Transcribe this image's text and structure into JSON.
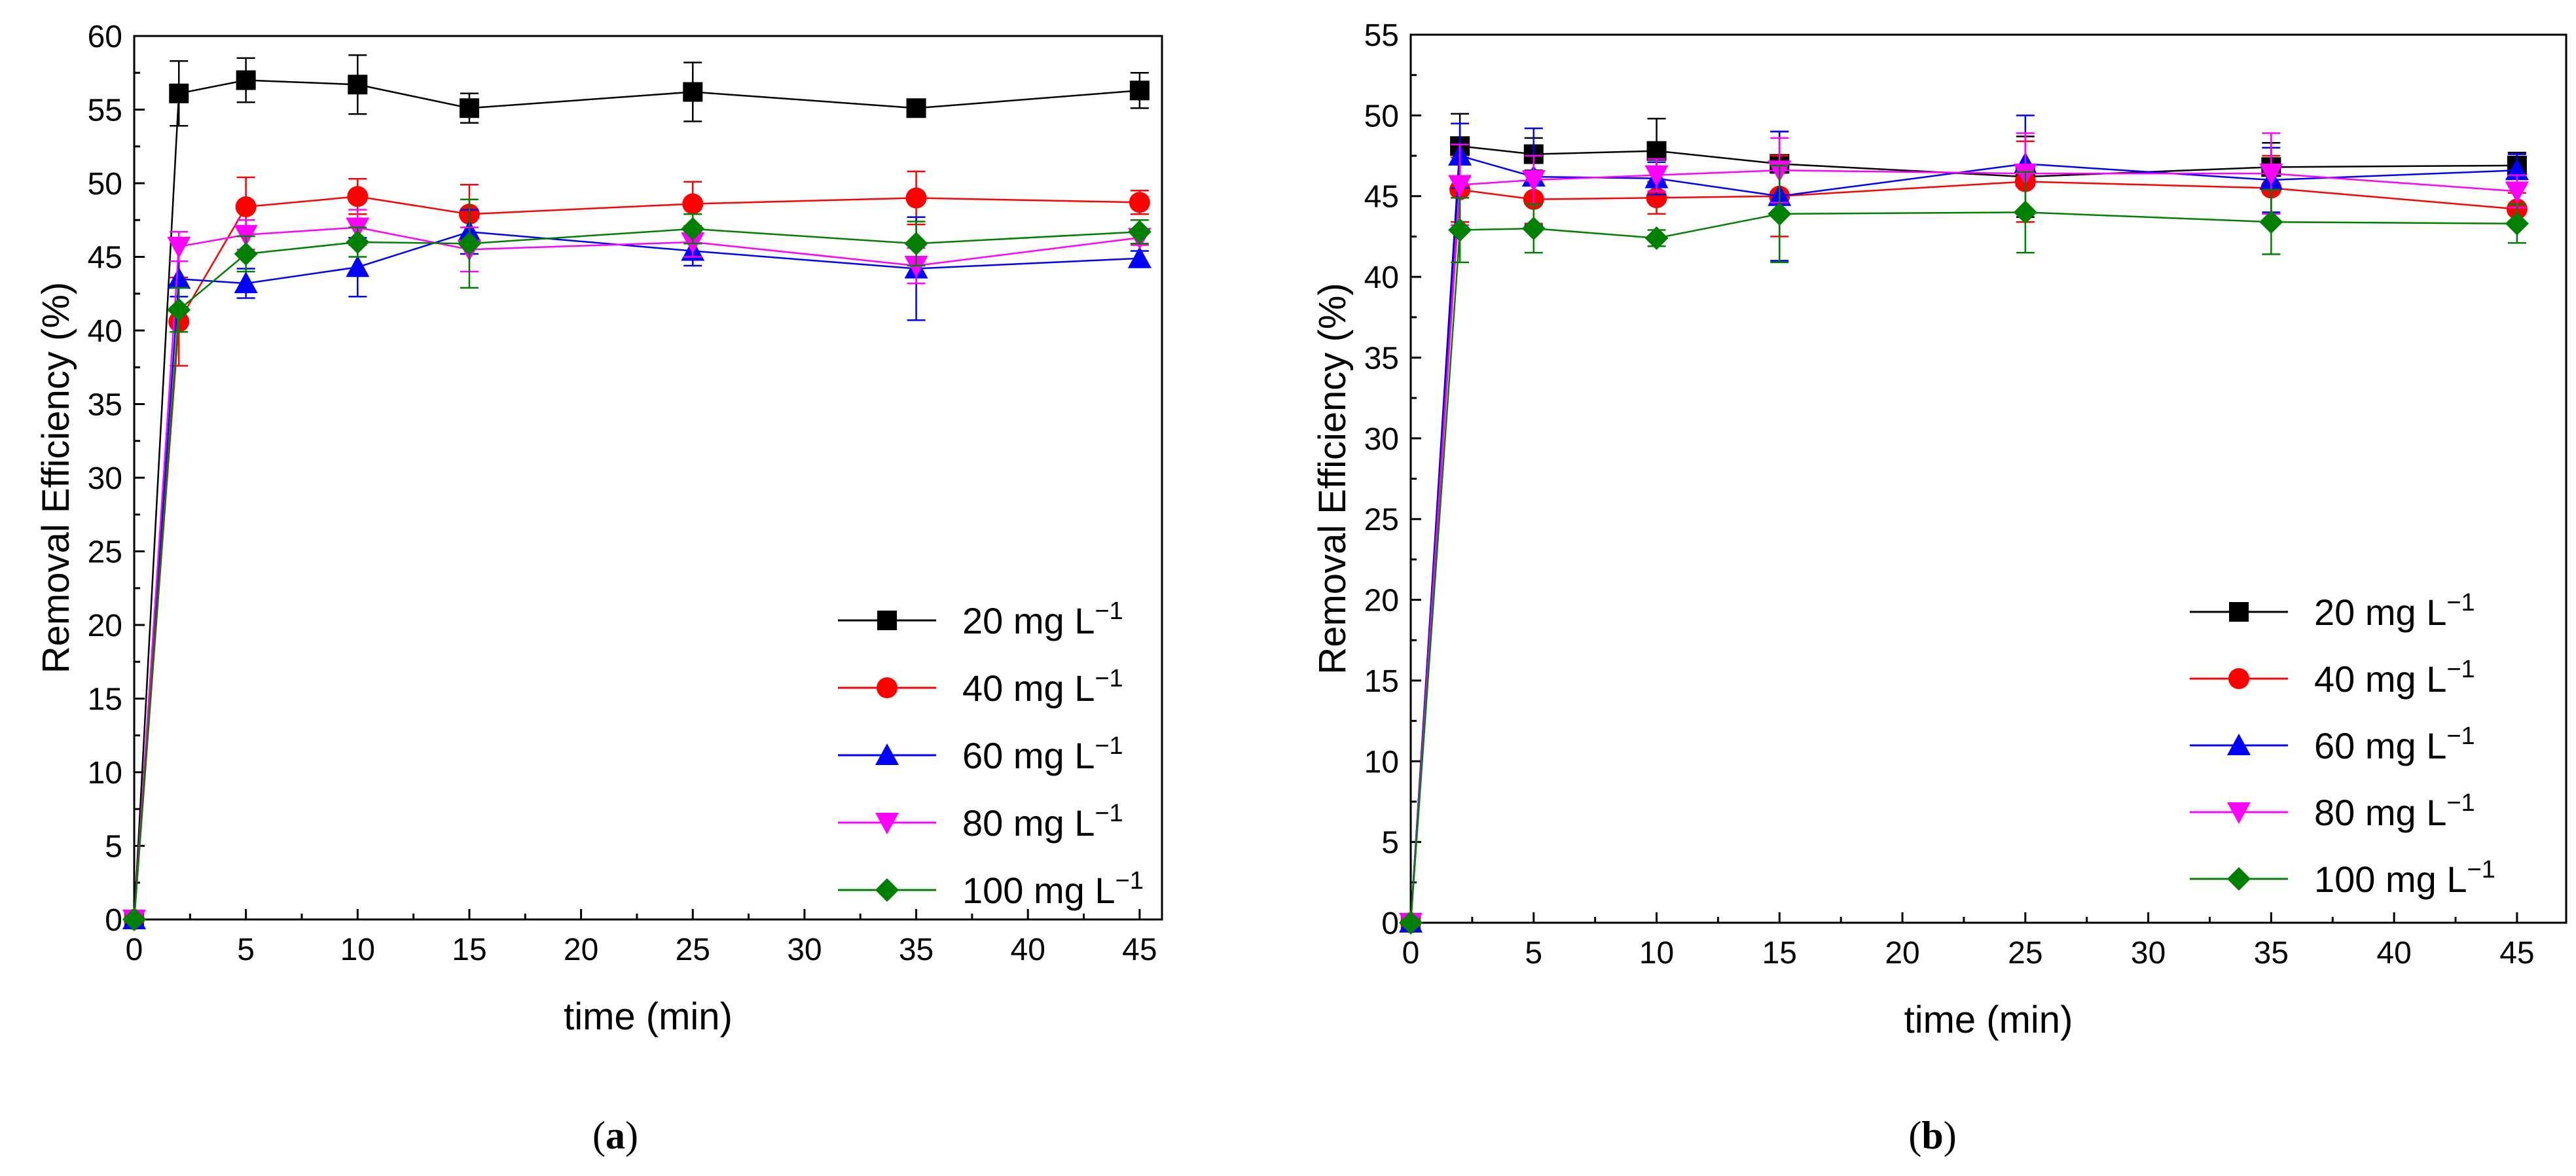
{
  "chart_data": [
    {
      "type": "line",
      "panel_label": "a",
      "xlabel": "time (min)",
      "ylabel": "Removal Efficiency (%)",
      "xlim": [
        0,
        46
      ],
      "ylim": [
        0,
        60
      ],
      "xticks": [
        0,
        5,
        10,
        15,
        20,
        25,
        30,
        35,
        40,
        45
      ],
      "yticks": [
        0,
        5,
        10,
        15,
        20,
        25,
        30,
        35,
        40,
        45,
        50,
        55,
        60
      ],
      "legend_position": "bottom-right",
      "x": [
        0,
        2,
        5,
        10,
        15,
        25,
        35,
        45
      ],
      "series": [
        {
          "name": "20 mg L",
          "superscript": "−1",
          "color": "#000000",
          "marker": "square",
          "values": [
            0,
            56.1,
            57.0,
            56.7,
            55.1,
            56.2,
            55.1,
            56.3
          ],
          "errors": [
            0,
            2.2,
            1.5,
            2.0,
            1.0,
            2.0,
            0,
            1.2
          ]
        },
        {
          "name": "40 mg L",
          "superscript": "−1",
          "color": "#ff0000",
          "marker": "circle",
          "values": [
            0,
            40.6,
            48.4,
            49.1,
            47.9,
            48.6,
            49.0,
            48.7
          ],
          "errors": [
            0,
            3.0,
            2.0,
            1.2,
            2.0,
            1.5,
            1.8,
            0.8
          ]
        },
        {
          "name": "60 mg L",
          "superscript": "−1",
          "color": "#0000ff",
          "marker": "triangle-up",
          "values": [
            0,
            43.5,
            43.2,
            44.3,
            46.7,
            45.4,
            44.2,
            44.9
          ],
          "errors": [
            0,
            1.2,
            1.0,
            2.0,
            1.5,
            1.0,
            3.5,
            0.5
          ]
        },
        {
          "name": "80 mg L",
          "superscript": "−1",
          "color": "#ff00ff",
          "marker": "triangle-down",
          "values": [
            0,
            45.7,
            46.5,
            47.0,
            45.5,
            46.0,
            44.4,
            46.3
          ],
          "errors": [
            0,
            1.0,
            1.0,
            1.2,
            1.5,
            1.0,
            1.2,
            0.5
          ]
        },
        {
          "name": "100 mg L",
          "superscript": "−1",
          "color": "#008000",
          "marker": "diamond",
          "values": [
            0,
            41.4,
            45.2,
            46.0,
            45.9,
            46.9,
            45.9,
            46.7
          ],
          "errors": [
            0,
            1.5,
            1.2,
            1.0,
            3.0,
            1.0,
            1.5,
            0.8
          ]
        }
      ]
    },
    {
      "type": "line",
      "panel_label": "b",
      "xlabel": "time (min)",
      "ylabel": "Removal Efficiency (%)",
      "xlim": [
        0,
        47
      ],
      "ylim": [
        0,
        55
      ],
      "xticks": [
        0,
        5,
        10,
        15,
        20,
        25,
        30,
        35,
        40,
        45
      ],
      "yticks": [
        0,
        5,
        10,
        15,
        20,
        25,
        30,
        35,
        40,
        45,
        50,
        55
      ],
      "legend_position": "bottom-right",
      "x": [
        0,
        2,
        5,
        10,
        15,
        25,
        35,
        45
      ],
      "series": [
        {
          "name": "20 mg L",
          "superscript": "−1",
          "color": "#000000",
          "marker": "square",
          "values": [
            0,
            48.1,
            47.6,
            47.8,
            47.0,
            46.2,
            46.8,
            46.9
          ],
          "errors": [
            0,
            2.0,
            1.0,
            2.0,
            2.0,
            2.5,
            1.5,
            0.8
          ]
        },
        {
          "name": "40 mg L",
          "superscript": "−1",
          "color": "#ff0000",
          "marker": "circle",
          "values": [
            0,
            45.4,
            44.8,
            44.9,
            45.0,
            45.9,
            45.5,
            44.2
          ],
          "errors": [
            0,
            2.0,
            1.5,
            1.0,
            2.5,
            2.5,
            2.0,
            1.0
          ]
        },
        {
          "name": "60 mg L",
          "superscript": "−1",
          "color": "#0000ff",
          "marker": "triangle-up",
          "values": [
            0,
            47.5,
            46.2,
            46.1,
            45.0,
            47.0,
            46.0,
            46.6
          ],
          "errors": [
            0,
            2.0,
            3.0,
            1.0,
            4.0,
            3.0,
            2.0,
            1.0
          ]
        },
        {
          "name": "80 mg L",
          "superscript": "−1",
          "color": "#ff00ff",
          "marker": "triangle-down",
          "values": [
            0,
            45.7,
            46.0,
            46.3,
            46.6,
            46.4,
            46.4,
            45.3
          ],
          "errors": [
            0,
            2.5,
            1.5,
            1.0,
            2.0,
            2.5,
            2.5,
            1.0
          ]
        },
        {
          "name": "100 mg L",
          "superscript": "−1",
          "color": "#008000",
          "marker": "diamond",
          "values": [
            0,
            42.9,
            43.0,
            42.4,
            43.9,
            44.0,
            43.4,
            43.3
          ],
          "errors": [
            0,
            2.0,
            1.5,
            0.5,
            3.0,
            2.5,
            2.0,
            1.2
          ]
        }
      ]
    }
  ]
}
